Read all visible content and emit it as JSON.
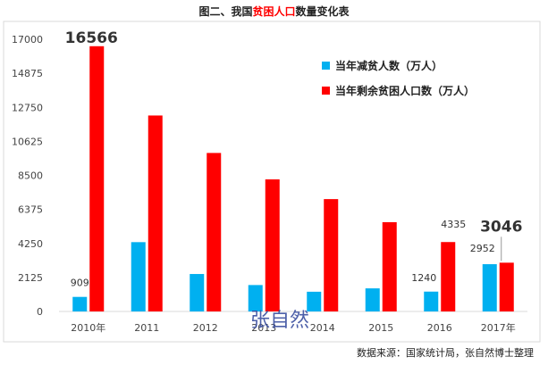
{
  "chart_data": {
    "type": "bar",
    "title_parts": [
      "图二、我国",
      "贫困人口",
      "数量变化表"
    ],
    "categories": [
      "2010年",
      "2011",
      "2012",
      "2013",
      "2014",
      "2015",
      "2016",
      "2017年"
    ],
    "series": [
      {
        "name": "当年减贫人数（万人）",
        "color": "#00b0f0",
        "values": [
          909,
          4329,
          2339,
          1650,
          1232,
          1442,
          1240,
          2952
        ]
      },
      {
        "name": "当年剩余贫困人口数（万人）",
        "color": "#ff0000",
        "values": [
          16566,
          12238,
          9899,
          8249,
          7017,
          5575,
          4335,
          3046
        ]
      }
    ],
    "yticks": [
      0,
      2125,
      4250,
      6375,
      8500,
      10625,
      12750,
      14875,
      17000
    ],
    "ylim": [
      0,
      17000
    ],
    "legend_position": "top-right",
    "data_labels": [
      {
        "series": 0,
        "index": 0,
        "text": "909",
        "size": "small"
      },
      {
        "series": 1,
        "index": 0,
        "text": "16566",
        "size": "big"
      },
      {
        "series": 0,
        "index": 6,
        "text": "1240",
        "size": "small"
      },
      {
        "series": 1,
        "index": 6,
        "text": "4335",
        "size": "small"
      },
      {
        "series": 0,
        "index": 7,
        "text": "2952",
        "size": "small"
      },
      {
        "series": 1,
        "index": 7,
        "text": "3046",
        "size": "big"
      }
    ],
    "watermark": "张自然",
    "source": "数据来源：国家统计局，张自然博士整理"
  }
}
